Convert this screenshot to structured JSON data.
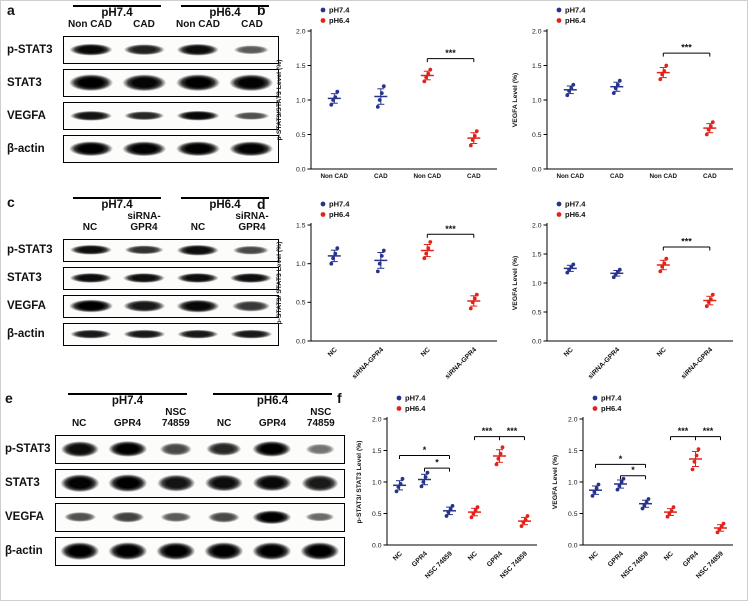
{
  "legend": [
    {
      "label": "pH7.4",
      "color": "#27348b"
    },
    {
      "label": "pH6.4",
      "color": "#e2231a"
    }
  ],
  "panels": {
    "a": {
      "label": "a",
      "groups": [
        "pH7.4",
        "pH6.4"
      ],
      "lanes": [
        "Non CAD",
        "CAD",
        "Non CAD",
        "CAD"
      ],
      "rows": [
        {
          "label": "p-STAT3",
          "weight": 0.5,
          "bands": [
            0.95,
            0.8,
            0.92,
            0.45
          ]
        },
        {
          "label": "STAT3",
          "weight": 0.68,
          "bands": [
            1,
            0.97,
            1,
            0.98
          ]
        },
        {
          "label": "VEGFA",
          "weight": 0.42,
          "bands": [
            0.88,
            0.75,
            0.95,
            0.5
          ]
        },
        {
          "label": "β-actin",
          "weight": 0.6,
          "bands": [
            1,
            0.98,
            1,
            0.98
          ]
        }
      ]
    },
    "b": {
      "label": "b"
    },
    "c": {
      "label": "c",
      "groups": [
        "pH7.4",
        "pH6.4"
      ],
      "lanes": [
        "NC",
        "siRNA-\nGPR4",
        "NC",
        "siRNA-\nGPR4"
      ],
      "rows": [
        {
          "label": "p-STAT3",
          "weight": 0.52,
          "bands": [
            0.9,
            0.7,
            0.92,
            0.55
          ]
        },
        {
          "label": "STAT3",
          "weight": 0.5,
          "bands": [
            0.92,
            0.9,
            0.92,
            0.9
          ]
        },
        {
          "label": "VEGFA",
          "weight": 0.62,
          "bands": [
            1,
            0.85,
            0.95,
            0.65
          ]
        },
        {
          "label": "β-actin",
          "weight": 0.45,
          "bands": [
            0.85,
            0.85,
            0.85,
            0.85
          ]
        }
      ]
    },
    "d": {
      "label": "d"
    },
    "e": {
      "label": "e",
      "groups": [
        "pH7.4",
        "pH6.4"
      ],
      "lanes": [
        "NC",
        "GPR4",
        "NSC\n74859",
        "NC",
        "GPR4",
        "NSC\n74859"
      ],
      "rows": [
        {
          "label": "p-STAT3",
          "weight": 0.6,
          "bands": [
            0.92,
            1,
            0.55,
            0.75,
            1,
            0.3
          ]
        },
        {
          "label": "STAT3",
          "weight": 0.66,
          "bands": [
            0.98,
            1,
            0.88,
            0.92,
            0.95,
            0.85
          ]
        },
        {
          "label": "VEGFA",
          "weight": 0.5,
          "bands": [
            0.5,
            0.6,
            0.45,
            0.55,
            1,
            0.35
          ]
        },
        {
          "label": "β-actin",
          "weight": 0.66,
          "bands": [
            1,
            1,
            1,
            1,
            1,
            1
          ]
        }
      ]
    },
    "f": {
      "label": "f"
    }
  },
  "chart_data": [
    {
      "id": "b1",
      "type": "scatter",
      "title": "",
      "ylabel": "p-STAT3/STAT3 Level (%)",
      "ylim": [
        0,
        2.0
      ],
      "yticks": [
        0,
        0.5,
        1.0,
        1.5,
        2.0
      ],
      "grid": false,
      "legend_position": "top-left",
      "rotate": false,
      "categories": [
        "Non CAD",
        "CAD",
        "Non CAD",
        "CAD"
      ],
      "group": [
        0,
        0,
        1,
        1
      ],
      "points": [
        [
          0.93,
          1.0,
          1.04,
          1.12
        ],
        [
          0.9,
          1.0,
          1.1,
          1.2
        ],
        [
          1.27,
          1.33,
          1.38,
          1.44
        ],
        [
          0.34,
          0.42,
          0.48,
          0.55
        ]
      ],
      "sig": [
        {
          "x1": 2,
          "x2": 3,
          "y": 1.6,
          "label": "***"
        }
      ]
    },
    {
      "id": "b2",
      "type": "scatter",
      "title": "",
      "ylabel": "VEGFA Level (%)",
      "ylim": [
        0,
        2.0
      ],
      "yticks": [
        0,
        0.5,
        1.0,
        1.5,
        2.0
      ],
      "grid": false,
      "legend_position": "top-left",
      "rotate": false,
      "categories": [
        "Non CAD",
        "CAD",
        "Non CAD",
        "CAD"
      ],
      "group": [
        0,
        0,
        1,
        1
      ],
      "points": [
        [
          1.07,
          1.13,
          1.17,
          1.22
        ],
        [
          1.1,
          1.17,
          1.22,
          1.28
        ],
        [
          1.3,
          1.37,
          1.42,
          1.5
        ],
        [
          0.5,
          0.57,
          0.62,
          0.68
        ]
      ],
      "sig": [
        {
          "x1": 2,
          "x2": 3,
          "y": 1.68,
          "label": "***"
        }
      ]
    },
    {
      "id": "d1",
      "type": "scatter",
      "title": "",
      "ylabel": "p-STAT3/ STAT3 Level (%)",
      "ylim": [
        0,
        1.5
      ],
      "yticks": [
        0,
        0.5,
        1.0,
        1.5
      ],
      "grid": false,
      "legend_position": "top-left",
      "rotate": true,
      "categories": [
        "NC",
        "siRNA-GPR4",
        "NC",
        "siRNA-GPR4"
      ],
      "group": [
        0,
        0,
        1,
        1
      ],
      "points": [
        [
          1.0,
          1.07,
          1.13,
          1.2
        ],
        [
          0.9,
          1.0,
          1.1,
          1.17
        ],
        [
          1.07,
          1.13,
          1.2,
          1.28
        ],
        [
          0.42,
          0.5,
          0.55,
          0.6
        ]
      ],
      "sig": [
        {
          "x1": 2,
          "x2": 3,
          "y": 1.38,
          "label": "***"
        }
      ]
    },
    {
      "id": "d2",
      "type": "scatter",
      "title": "",
      "ylabel": "VEGFA Level (%)",
      "ylim": [
        0,
        2.0
      ],
      "yticks": [
        0,
        0.5,
        1.0,
        1.5,
        2.0
      ],
      "grid": false,
      "legend_position": "top-left",
      "rotate": true,
      "categories": [
        "NC",
        "siRNA-GPR4",
        "NC",
        "siRNA-GPR4"
      ],
      "group": [
        0,
        0,
        1,
        1
      ],
      "points": [
        [
          1.18,
          1.23,
          1.28,
          1.32
        ],
        [
          1.1,
          1.15,
          1.19,
          1.23
        ],
        [
          1.2,
          1.28,
          1.34,
          1.42
        ],
        [
          0.6,
          0.67,
          0.72,
          0.8
        ]
      ],
      "sig": [
        {
          "x1": 2,
          "x2": 3,
          "y": 1.62,
          "label": "***"
        }
      ]
    },
    {
      "id": "f1",
      "type": "scatter",
      "title": "",
      "ylabel": "p-STAT3/ STAT3 Level (%)",
      "ylim": [
        0,
        2.0
      ],
      "yticks": [
        0,
        0.5,
        1.0,
        1.5,
        2.0
      ],
      "grid": false,
      "legend_position": "top-left",
      "rotate": true,
      "categories": [
        "NC",
        "GPR4",
        "NSC 74859",
        "NC",
        "GPR4",
        "NSC 74859"
      ],
      "group": [
        0,
        0,
        0,
        1,
        1,
        1
      ],
      "points": [
        [
          0.85,
          0.92,
          0.97,
          1.05
        ],
        [
          0.93,
          1.0,
          1.08,
          1.15
        ],
        [
          0.46,
          0.52,
          0.57,
          0.62
        ],
        [
          0.44,
          0.5,
          0.55,
          0.6
        ],
        [
          1.28,
          1.37,
          1.45,
          1.55
        ],
        [
          0.3,
          0.36,
          0.4,
          0.46
        ]
      ],
      "sig": [
        {
          "x1": 0,
          "x2": 2,
          "y": 1.42,
          "label": "*"
        },
        {
          "x1": 1,
          "x2": 2,
          "y": 1.22,
          "label": "*"
        },
        {
          "x1": 3,
          "x2": 4,
          "y": 1.72,
          "label": "***"
        },
        {
          "x1": 4,
          "x2": 5,
          "y": 1.72,
          "label": "***"
        }
      ]
    },
    {
      "id": "f2",
      "type": "scatter",
      "title": "",
      "ylabel": "VEGFA Level (%)",
      "ylim": [
        0,
        2.0
      ],
      "yticks": [
        0,
        0.5,
        1.0,
        1.5,
        2.0
      ],
      "grid": false,
      "legend_position": "top-left",
      "rotate": true,
      "categories": [
        "NC",
        "GPR4",
        "NSC 74859",
        "NC",
        "GPR4",
        "NSC 74859"
      ],
      "group": [
        0,
        0,
        0,
        1,
        1,
        1
      ],
      "points": [
        [
          0.78,
          0.84,
          0.9,
          0.96
        ],
        [
          0.88,
          0.94,
          1.0,
          1.05
        ],
        [
          0.58,
          0.63,
          0.68,
          0.73
        ],
        [
          0.45,
          0.5,
          0.54,
          0.6
        ],
        [
          1.2,
          1.32,
          1.42,
          1.52
        ],
        [
          0.2,
          0.25,
          0.29,
          0.34
        ]
      ],
      "sig": [
        {
          "x1": 0,
          "x2": 2,
          "y": 1.28,
          "label": "*"
        },
        {
          "x1": 1,
          "x2": 2,
          "y": 1.1,
          "label": "*"
        },
        {
          "x1": 3,
          "x2": 4,
          "y": 1.72,
          "label": "***"
        },
        {
          "x1": 4,
          "x2": 5,
          "y": 1.72,
          "label": "***"
        }
      ]
    }
  ]
}
